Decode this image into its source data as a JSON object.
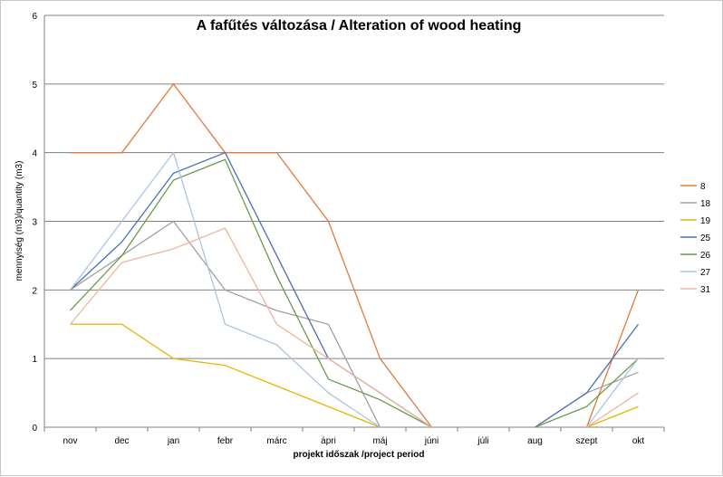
{
  "chart_data": {
    "type": "line",
    "title": "A fafűtés változása / Alteration of wood heating",
    "xlabel": "projekt időszak /project period",
    "ylabel": "mennyiség (m3)/quantity (m3)",
    "ylim": [
      0,
      6
    ],
    "yticks": [
      0,
      1,
      2,
      3,
      4,
      5,
      6
    ],
    "grid": true,
    "legend": "right",
    "categories": [
      "nov",
      "dec",
      "jan",
      "febr",
      "márc",
      "ápri",
      "máj",
      "júni",
      "júli",
      "aug",
      "szept",
      "okt"
    ],
    "series": [
      {
        "name": "8",
        "color": "#E07B39",
        "values": [
          4,
          4,
          5,
          4,
          4,
          3,
          1,
          0,
          null,
          null,
          0,
          2
        ]
      },
      {
        "name": "18",
        "color": "#A0A0A0",
        "values": [
          2,
          2.5,
          3,
          2,
          1.7,
          1.5,
          0,
          null,
          null,
          0,
          0.5,
          0.8
        ]
      },
      {
        "name": "19",
        "color": "#E8B400",
        "values": [
          1.5,
          1.5,
          1,
          0.9,
          0.6,
          0.3,
          0,
          null,
          null,
          null,
          0,
          0.3
        ]
      },
      {
        "name": "25",
        "color": "#4A6FB0",
        "values": [
          2,
          2.7,
          3.7,
          4,
          2.5,
          1,
          0.5,
          0,
          null,
          0,
          0.5,
          1.5
        ]
      },
      {
        "name": "26",
        "color": "#6A9A4A",
        "values": [
          1.7,
          2.5,
          3.6,
          3.9,
          2.2,
          0.7,
          0.4,
          0,
          null,
          0,
          0.3,
          1
        ]
      },
      {
        "name": "27",
        "color": "#A9C4E4",
        "values": [
          2,
          3,
          4,
          1.5,
          1.2,
          0.5,
          0,
          null,
          null,
          null,
          0,
          1
        ]
      },
      {
        "name": "31",
        "color": "#F0B49C",
        "values": [
          1.5,
          2.4,
          2.6,
          2.9,
          1.5,
          1,
          0.5,
          0,
          null,
          null,
          0,
          0.5
        ]
      }
    ]
  }
}
